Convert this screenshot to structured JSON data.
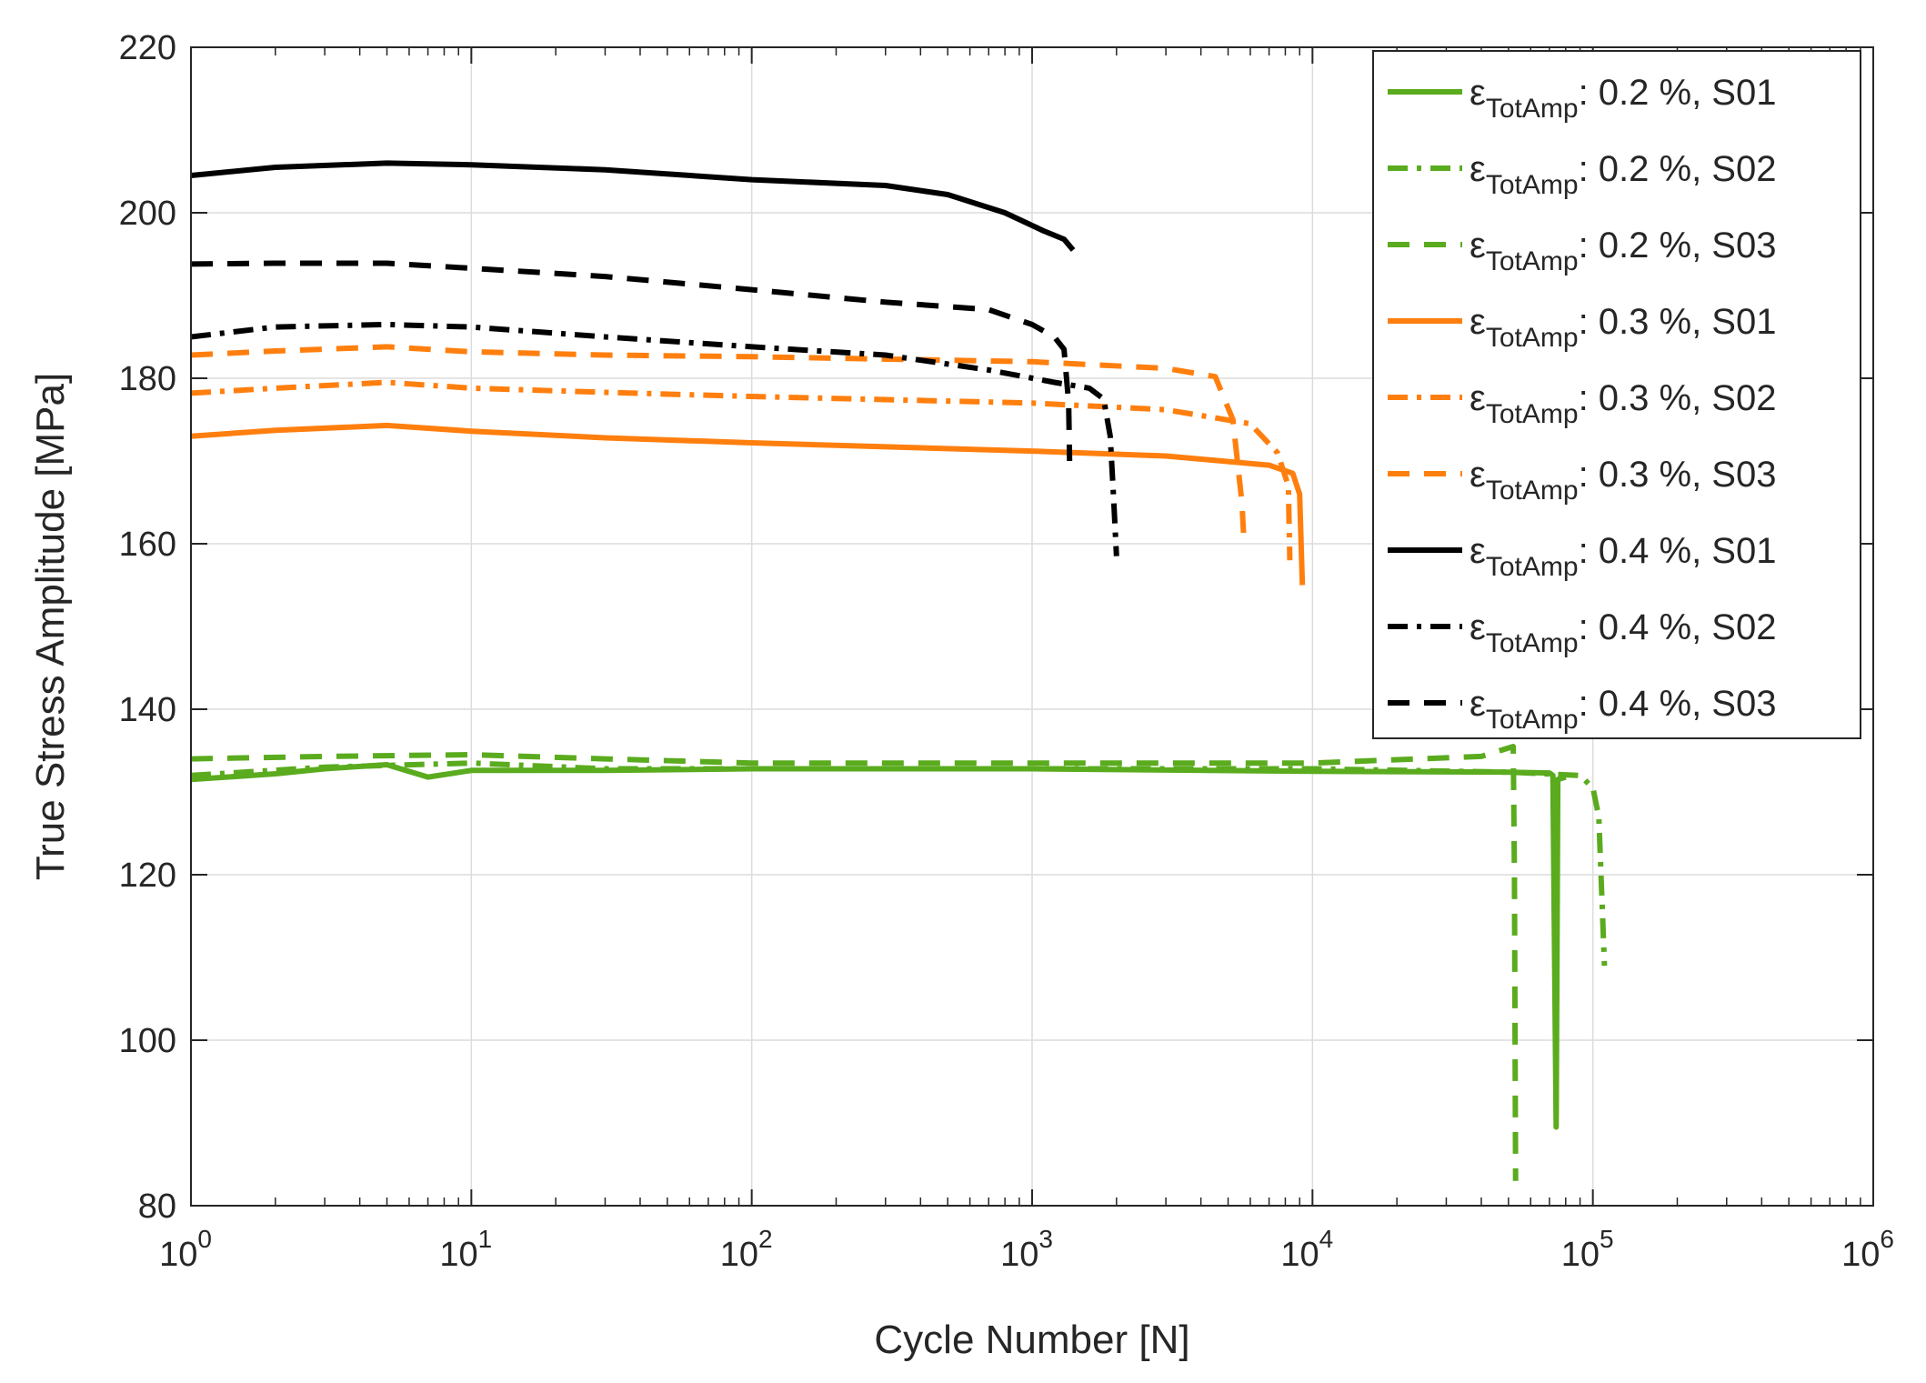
{
  "chart_data": {
    "type": "line",
    "title": "",
    "xlabel": "Cycle Number [N]",
    "ylabel": "True Stress Amplitude [MPa]",
    "xscale": "log",
    "xlim": [
      1,
      1000000
    ],
    "ylim": [
      80,
      220
    ],
    "grid": true,
    "legend_position": "top-right",
    "x_ticks": [
      {
        "value": 1,
        "base": "10",
        "exp": "0"
      },
      {
        "value": 10,
        "base": "10",
        "exp": "1"
      },
      {
        "value": 100,
        "base": "10",
        "exp": "2"
      },
      {
        "value": 1000,
        "base": "10",
        "exp": "3"
      },
      {
        "value": 10000,
        "base": "10",
        "exp": "4"
      },
      {
        "value": 100000,
        "base": "10",
        "exp": "5"
      },
      {
        "value": 1000000,
        "base": "10",
        "exp": "6"
      }
    ],
    "y_ticks": [
      80,
      100,
      120,
      140,
      160,
      180,
      200,
      220
    ],
    "legend_symbol": "ε",
    "legend_sub": "TotAmp",
    "colors": {
      "green": "#5aab1e",
      "orange": "#ff7f0e",
      "black": "#000000"
    },
    "series": [
      {
        "name": "εTotAmp: 0.2 %, S01",
        "suffix": ": 0.2 %, S01",
        "color": "#5aab1e",
        "dash": "solid",
        "x": [
          1,
          2,
          3,
          5,
          7,
          10,
          30,
          100,
          1000,
          10000,
          50000,
          70000,
          72000,
          74000,
          75000,
          80000
        ],
        "y": [
          131.5,
          132.2,
          132.8,
          133.3,
          131.8,
          132.6,
          132.6,
          132.8,
          132.8,
          132.5,
          132.4,
          132.3,
          132.0,
          89.5,
          131.5,
          131.8
        ]
      },
      {
        "name": "εTotAmp: 0.2 %, S02",
        "suffix": ": 0.2 %, S02",
        "color": "#5aab1e",
        "dash": "dashdot",
        "x": [
          1,
          3,
          10,
          30,
          100,
          1000,
          10000,
          50000,
          90000,
          100000,
          105000,
          110000
        ],
        "y": [
          132,
          133,
          133.5,
          132.8,
          132.8,
          132.8,
          132.8,
          132.4,
          132.0,
          130.5,
          127,
          109
        ]
      },
      {
        "name": "εTotAmp: 0.2 %, S03",
        "suffix": ": 0.2 %, S03",
        "color": "#5aab1e",
        "dash": "dashed",
        "x": [
          1,
          3,
          10,
          30,
          100,
          1000,
          10000,
          40000,
          52000,
          52500,
          53000
        ],
        "y": [
          134,
          134.3,
          134.5,
          134,
          133.5,
          133.5,
          133.5,
          134.3,
          135.5,
          120,
          83
        ]
      },
      {
        "name": "εTotAmp: 0.3 %, S01",
        "suffix": ": 0.3 %, S01",
        "color": "#ff7f0e",
        "dash": "solid",
        "x": [
          1,
          2,
          5,
          10,
          30,
          100,
          1000,
          3000,
          7000,
          8500,
          9000,
          9200
        ],
        "y": [
          173,
          173.7,
          174.3,
          173.6,
          172.8,
          172.2,
          171.2,
          170.6,
          169.5,
          168.5,
          166,
          155
        ]
      },
      {
        "name": "εTotAmp: 0.3 %, S02",
        "suffix": ": 0.3 %, S02",
        "color": "#ff7f0e",
        "dash": "dashdot",
        "x": [
          1,
          2,
          5,
          10,
          30,
          100,
          1000,
          3000,
          6000,
          7500,
          8200,
          8300
        ],
        "y": [
          178.2,
          178.8,
          179.5,
          178.8,
          178.3,
          177.8,
          177.0,
          176.2,
          174.5,
          171,
          167,
          158
        ]
      },
      {
        "name": "εTotAmp: 0.3 %, S03",
        "suffix": ": 0.3 %, S03",
        "color": "#ff7f0e",
        "dash": "dashed",
        "x": [
          1,
          2,
          5,
          10,
          30,
          100,
          1000,
          3000,
          4500,
          5200,
          5600,
          5700
        ],
        "y": [
          182.8,
          183.3,
          183.8,
          183.2,
          182.8,
          182.6,
          182.0,
          181.2,
          180.2,
          175,
          165,
          160
        ]
      },
      {
        "name": "εTotAmp: 0.4 %, S01",
        "suffix": ": 0.4 %, S01",
        "color": "#000000",
        "dash": "solid",
        "x": [
          1,
          2,
          5,
          10,
          30,
          100,
          300,
          500,
          800,
          1100,
          1300,
          1400
        ],
        "y": [
          204.5,
          205.5,
          206.0,
          205.8,
          205.2,
          204.0,
          203.3,
          202.2,
          200.0,
          197.8,
          196.8,
          195.5
        ]
      },
      {
        "name": "εTotAmp: 0.4 %, S02",
        "suffix": ": 0.4 %, S02",
        "color": "#000000",
        "dash": "dashdot",
        "x": [
          1,
          2,
          5,
          10,
          30,
          100,
          300,
          700,
          1200,
          1600,
          1800,
          1900,
          1950,
          2000
        ],
        "y": [
          185,
          186.2,
          186.5,
          186.2,
          185.0,
          183.8,
          182.8,
          181.0,
          179.5,
          178.8,
          177.5,
          173,
          166,
          158.5
        ]
      },
      {
        "name": "εTotAmp: 0.4 %, S03",
        "suffix": ": 0.4 %, S03",
        "color": "#000000",
        "dash": "dashed",
        "x": [
          1,
          2,
          5,
          10,
          30,
          100,
          300,
          700,
          1000,
          1200,
          1300,
          1350,
          1360
        ],
        "y": [
          193.8,
          193.9,
          193.9,
          193.3,
          192.3,
          190.7,
          189.2,
          188.3,
          186.5,
          185.0,
          183.5,
          177,
          170
        ]
      }
    ]
  }
}
